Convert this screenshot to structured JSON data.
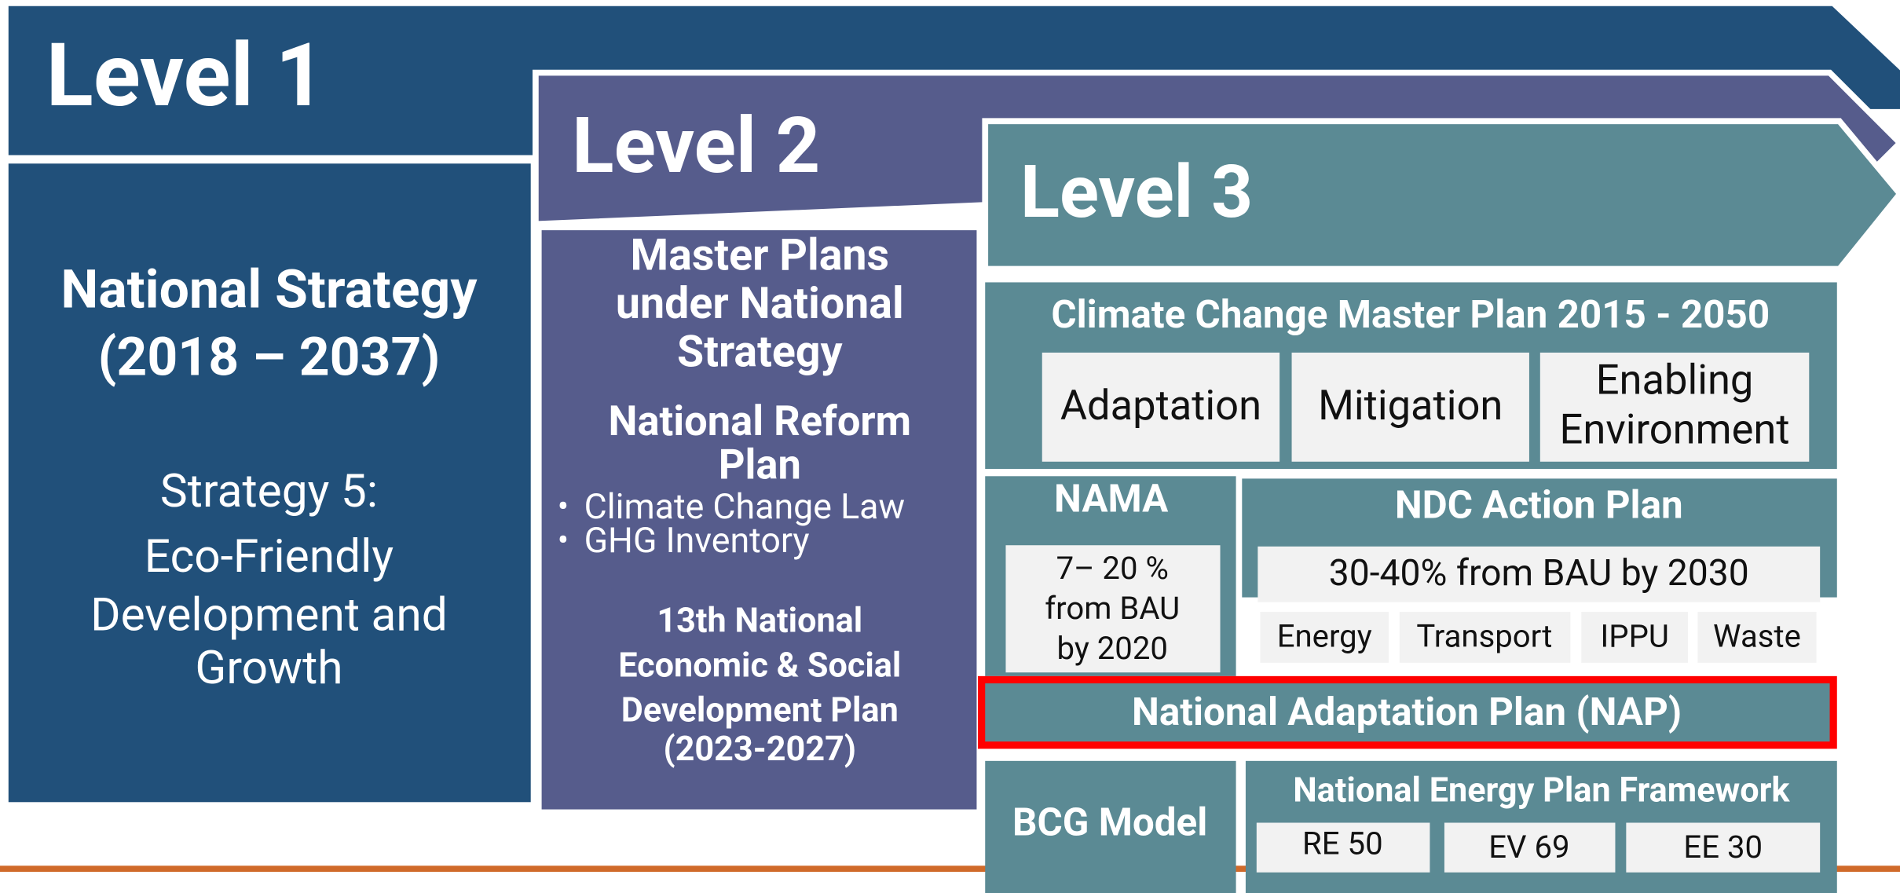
{
  "level1": {
    "label": "Level 1",
    "title_lines": [
      "National Strategy",
      "(2018 – 2037)"
    ],
    "strategy_lines": [
      "Strategy 5:",
      "Eco-Friendly",
      "Development and",
      "Growth"
    ]
  },
  "level2": {
    "label": "Level 2",
    "master_lines": [
      "Master Plans",
      "under National",
      "Strategy"
    ],
    "reform_lines": [
      "National Reform",
      "Plan"
    ],
    "reform_bullets": [
      "Climate Change Law",
      "GHG Inventory"
    ],
    "nesdp_lines": [
      "13th National",
      "Economic &  Social",
      "Development Plan",
      "(2023-2027)"
    ]
  },
  "level3": {
    "label": "Level 3",
    "ccmp": {
      "title": "Climate Change Master Plan 2015 - 2050",
      "items": [
        "Adaptation",
        "Mitigation"
      ],
      "enabling_lines": [
        "Enabling",
        "Environment"
      ]
    },
    "nama": {
      "title": "NAMA",
      "target_lines": [
        "7– 20 %",
        "from BAU",
        "by 2020"
      ]
    },
    "ndc": {
      "title": "NDC Action Plan",
      "target": "30-40% from BAU by 2030",
      "sectors": [
        "Energy",
        "Transport",
        "IPPU",
        "Waste"
      ]
    },
    "nap": {
      "title": "National Adaptation Plan (NAP)"
    },
    "bcg": {
      "title": "BCG Model"
    },
    "nep": {
      "title": "National Energy Plan Framework",
      "items": [
        "RE 50",
        "EV 69",
        "EE 30"
      ]
    }
  }
}
